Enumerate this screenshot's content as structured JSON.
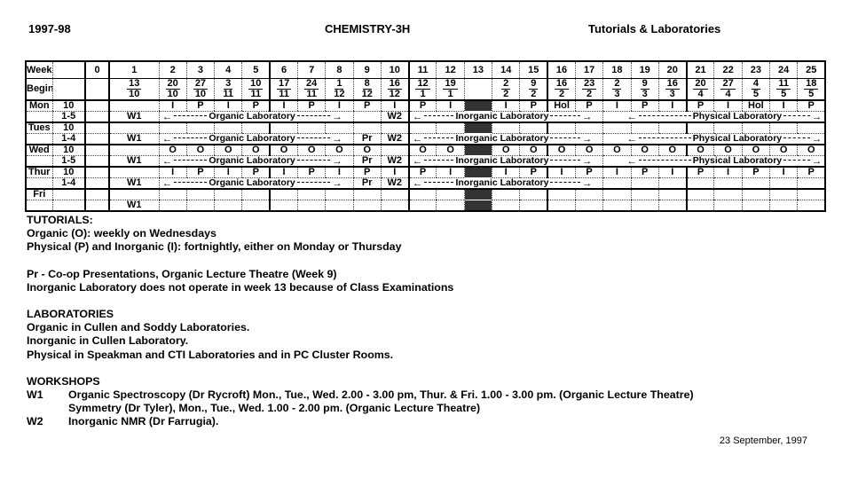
{
  "header": {
    "year": "1997-98",
    "title": "CHEMISTRY-3H",
    "subtitle": "Tutorials & Laboratories"
  },
  "glyphs": {
    "left": "←",
    "right": "→"
  },
  "table": {
    "week_label": "Week",
    "begins_label": "Begins",
    "weeks": [
      "0",
      "1",
      "2",
      "3",
      "4",
      "5",
      "6",
      "7",
      "8",
      "9",
      "10",
      "11",
      "12",
      "13",
      "14",
      "15",
      "16",
      "17",
      "18",
      "19",
      "20",
      "21",
      "22",
      "23",
      "24",
      "25"
    ],
    "begins": [
      null,
      {
        "d": "13",
        "m": "10"
      },
      {
        "d": "20",
        "m": "10"
      },
      {
        "d": "27",
        "m": "10"
      },
      {
        "d": "3",
        "m": "11"
      },
      {
        "d": "10",
        "m": "11"
      },
      {
        "d": "17",
        "m": "11"
      },
      {
        "d": "24",
        "m": "11"
      },
      {
        "d": "1",
        "m": "12"
      },
      {
        "d": "8",
        "m": "12"
      },
      {
        "d": "16",
        "m": "12"
      },
      {
        "d": "12",
        "m": "1"
      },
      {
        "d": "19",
        "m": "1"
      },
      null,
      {
        "d": "2",
        "m": "2"
      },
      {
        "d": "9",
        "m": "2"
      },
      {
        "d": "16",
        "m": "2"
      },
      {
        "d": "23",
        "m": "2"
      },
      {
        "d": "2",
        "m": "3"
      },
      {
        "d": "9",
        "m": "3"
      },
      {
        "d": "16",
        "m": "3"
      },
      {
        "d": "20",
        "m": "4"
      },
      {
        "d": "27",
        "m": "4"
      },
      {
        "d": "4",
        "m": "5"
      },
      {
        "d": "11",
        "m": "5"
      },
      {
        "d": "18",
        "m": "5"
      }
    ],
    "days": {
      "mon": {
        "label": "Mon",
        "time1": "10",
        "time2": "1-5"
      },
      "tue": {
        "label": "Tues",
        "time1": "10",
        "time2": "1-4"
      },
      "wed": {
        "label": "Wed",
        "time1": "10",
        "time2": "1-5"
      },
      "thur": {
        "label": "Thur",
        "time1": "10",
        "time2": "1-4"
      },
      "fri": {
        "label": "Fri"
      }
    },
    "mon10": [
      "",
      "",
      "I",
      "P",
      "I",
      "P",
      "I",
      "P",
      "I",
      "P",
      "I",
      "P",
      "I",
      "",
      "I",
      "P",
      "Hol",
      "P",
      "I",
      "P",
      "I",
      "P",
      "I",
      "Hol",
      "I",
      "P"
    ],
    "wed10": [
      "",
      "",
      "O",
      "O",
      "O",
      "O",
      "O",
      "O",
      "O",
      "O",
      "",
      "O",
      "O",
      "",
      "O",
      "O",
      "O",
      "O",
      "O",
      "O",
      "O",
      "O",
      "O",
      "O",
      "O",
      "O"
    ],
    "thur10": [
      "",
      "",
      "I",
      "P",
      "I",
      "P",
      "I",
      "P",
      "I",
      "P",
      "I",
      "P",
      "I",
      "",
      "I",
      "P",
      "I",
      "P",
      "I",
      "P",
      "I",
      "P",
      "I",
      "P",
      "I",
      "P"
    ],
    "labels": {
      "w1": "W1",
      "w2": "W2",
      "pr": "Pr",
      "organic": "Organic Laboratory",
      "inorganic": "Inorganic Laboratory",
      "physical": "Physical Laboratory"
    }
  },
  "notes": {
    "tutorials_heading": "TUTORIALS:",
    "tutorials_line1": "Organic (O): weekly on Wednesdays",
    "tutorials_line2": "Physical (P) and Inorganic (I): fortnightly, either on Monday or Thursday",
    "pr_line": "Pr - Co-op Presentations, Organic Lecture Theatre (Week 9)",
    "week13_line": "Inorganic Laboratory does not operate in week 13 because of Class Examinations",
    "labs_heading": "LABORATORIES",
    "labs_line1": "Organic in Cullen and Soddy Laboratories.",
    "labs_line2": "Inorganic in Cullen Laboratory.",
    "labs_line3": "Physical in Speakman and CTI Laboratories and in PC Cluster Rooms.",
    "workshops_heading": "WORKSHOPS",
    "w1_label": "W1",
    "w1_line1": "Organic Spectroscopy (Dr Rycroft) Mon., Tue., Wed. 2.00 - 3.00 pm, Thur. & Fri. 1.00 - 3.00 pm. (Organic Lecture Theatre)",
    "w1_line2": "Symmetry (Dr Tyler), Mon., Tue., Wed. 1.00 - 2.00 pm. (Organic Lecture Theatre)",
    "w2_label": "W2",
    "w2_line": "Inorganic NMR (Dr Farrugia)."
  },
  "footer_date": "23 September, 1997"
}
